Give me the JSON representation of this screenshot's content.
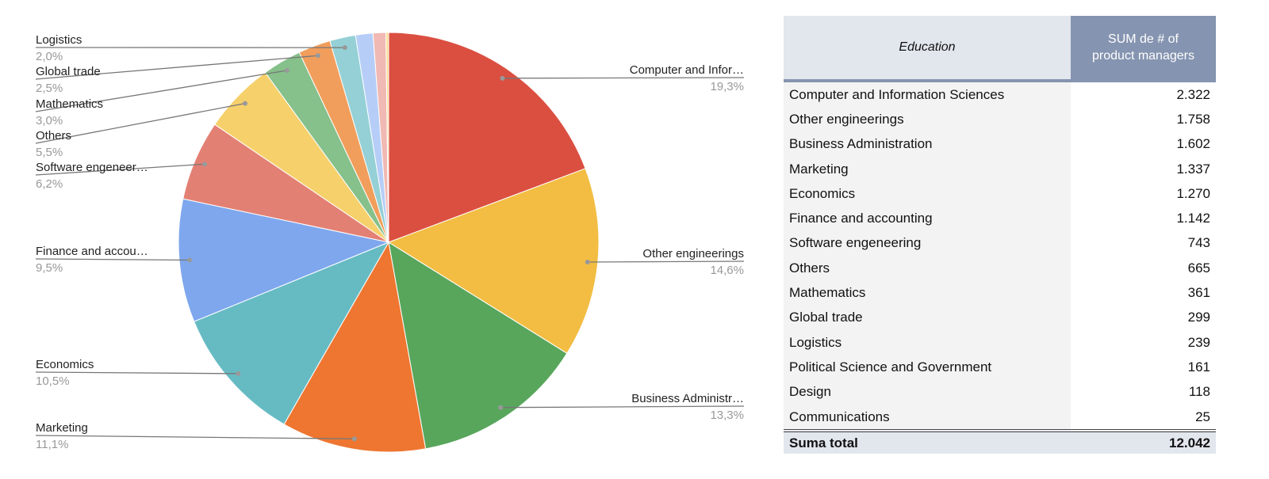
{
  "chart_data": {
    "type": "pie",
    "start": "top",
    "direction": "clockwise",
    "slices": [
      {
        "label": "Computer and Infor…",
        "percent_label": "19,3%",
        "value": 2322,
        "color": "#db4f41"
      },
      {
        "label": "Other engineerings",
        "percent_label": "14,6%",
        "value": 1758,
        "color": "#f2bd42"
      },
      {
        "label": "Business Administr…",
        "percent_label": "13,3%",
        "value": 1602,
        "color": "#58a65c"
      },
      {
        "label": "Marketing",
        "percent_label": "11,1%",
        "value": 1337,
        "color": "#ee7631"
      },
      {
        "label": "Economics",
        "percent_label": "10,5%",
        "value": 1270,
        "color": "#66bbc3"
      },
      {
        "label": "Finance and accou…",
        "percent_label": "9,5%",
        "value": 1142,
        "color": "#7ea7ee"
      },
      {
        "label": "Software engeneer…",
        "percent_label": "6,2%",
        "value": 743,
        "color": "#e38074"
      },
      {
        "label": "Others",
        "percent_label": "5,5%",
        "value": 665,
        "color": "#f6d06b"
      },
      {
        "label": "Mathematics",
        "percent_label": "3,0%",
        "value": 361,
        "color": "#86c08b"
      },
      {
        "label": "Global trade",
        "percent_label": "2,5%",
        "value": 299,
        "color": "#f19e5c"
      },
      {
        "label": "Logistics",
        "percent_label": "2,0%",
        "value": 239,
        "color": "#94d0d6"
      },
      {
        "label": "",
        "percent_label": "",
        "value": 161,
        "color": "#b6cef7"
      },
      {
        "label": "",
        "percent_label": "",
        "value": 118,
        "color": "#f0b9b3"
      },
      {
        "label": "",
        "percent_label": "",
        "value": 25,
        "color": "#f9dc93"
      }
    ]
  },
  "table": {
    "col1": "Education",
    "col2_line1": "SUM de # of",
    "col2_line2": "product managers",
    "rows": [
      {
        "name": "Computer and Information Sciences",
        "value": "2.322"
      },
      {
        "name": "Other engineerings",
        "value": "1.758"
      },
      {
        "name": "Business Administration",
        "value": "1.602"
      },
      {
        "name": "Marketing",
        "value": "1.337"
      },
      {
        "name": "Economics",
        "value": "1.270"
      },
      {
        "name": "Finance and accounting",
        "value": "1.142"
      },
      {
        "name": "Software engeneering",
        "value": "743"
      },
      {
        "name": "Others",
        "value": "665"
      },
      {
        "name": "Mathematics",
        "value": "361"
      },
      {
        "name": "Global trade",
        "value": "299"
      },
      {
        "name": "Logistics",
        "value": "239"
      },
      {
        "name": "Political Science and Government",
        "value": "161"
      },
      {
        "name": "Design",
        "value": "118"
      },
      {
        "name": "Communications",
        "value": "25"
      }
    ],
    "total_label": "Suma total",
    "total_value": "12.042"
  }
}
